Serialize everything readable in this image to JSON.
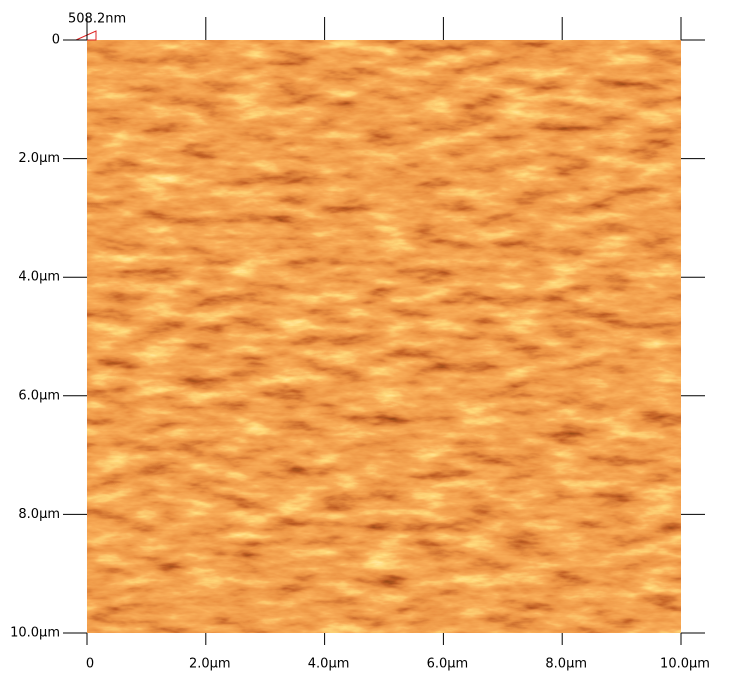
{
  "chart_data": {
    "type": "image",
    "scale_label": "508.2nm",
    "xlim": [
      0,
      10
    ],
    "ylim": [
      0,
      10
    ],
    "xticks": [
      0,
      {
        "value": 2,
        "label": "2.0µm"
      },
      {
        "value": 4,
        "label": "4.0µm"
      },
      {
        "value": 6,
        "label": "6.0µm"
      },
      {
        "value": 8,
        "label": "8.0µm"
      },
      {
        "value": 10,
        "label": "10.0µm"
      }
    ],
    "yticks": [
      0,
      {
        "value": 2,
        "label": "2.0µm"
      },
      {
        "value": 4,
        "label": "4.0µm"
      },
      {
        "value": 6,
        "label": "6.0µm"
      },
      {
        "value": 8,
        "label": "8.0µm"
      },
      {
        "value": 10,
        "label": "10.0µm"
      }
    ]
  }
}
